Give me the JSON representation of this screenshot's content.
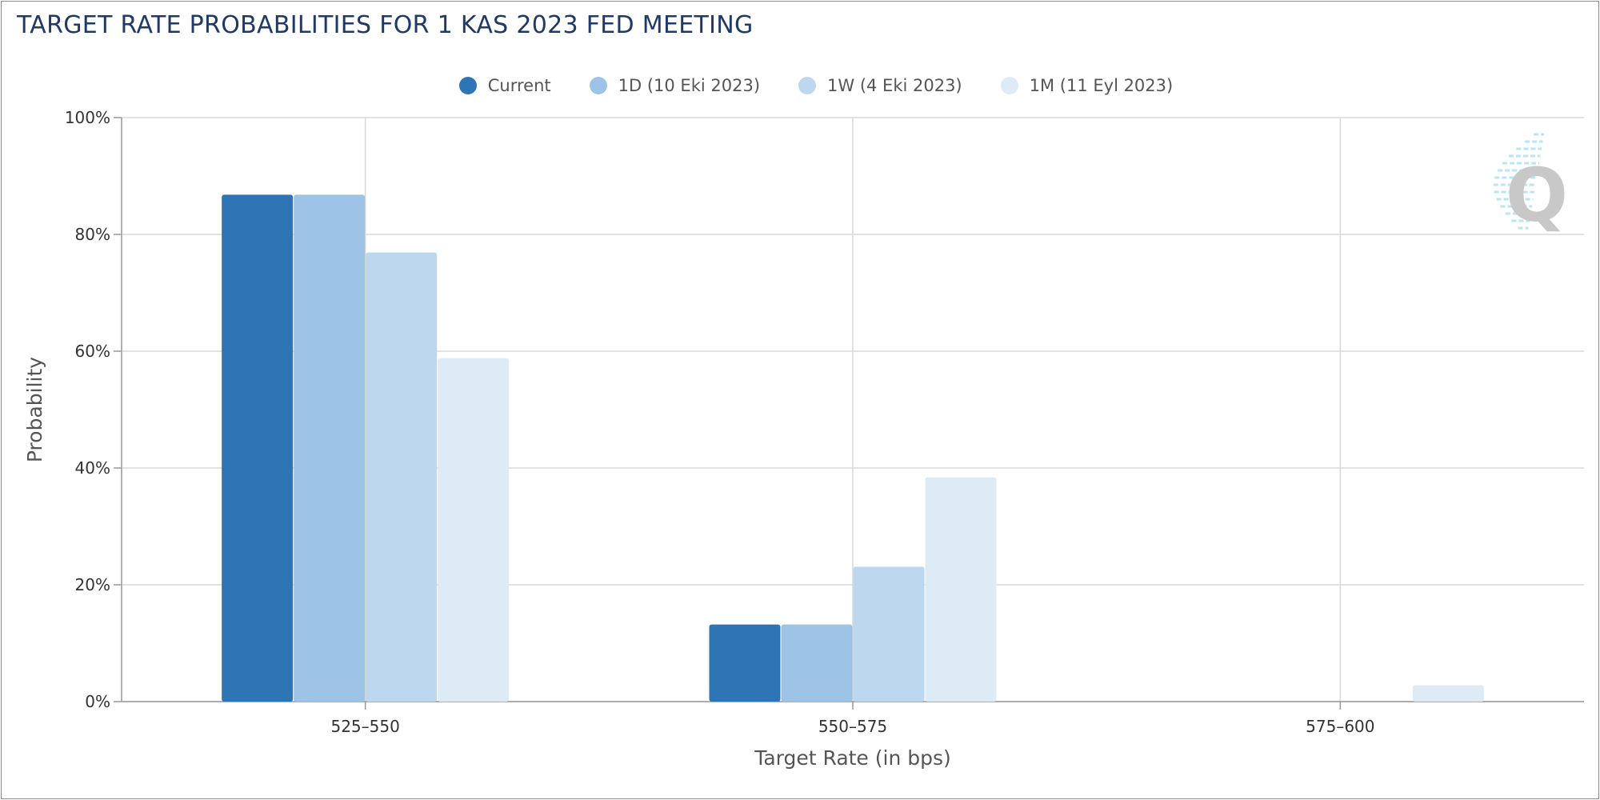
{
  "title": "TARGET RATE PROBABILITIES FOR 1 KAS 2023 FED MEETING",
  "chart_data": {
    "type": "bar",
    "title": "TARGET RATE PROBABILITIES FOR 1 KAS 2023 FED MEETING",
    "xlabel": "Target Rate (in bps)",
    "ylabel": "Probability",
    "categories": [
      "525-550",
      "550-575",
      "575-600"
    ],
    "ylim": [
      0,
      100
    ],
    "yticks": [
      "0%",
      "20%",
      "40%",
      "60%",
      "80%",
      "100%"
    ],
    "grid": true,
    "legend_position": "top-center",
    "series": [
      {
        "name": "Current",
        "color": "#2e75b6",
        "values": [
          86.8,
          13.2,
          0
        ]
      },
      {
        "name": "1D (10 Eki 2023)",
        "color": "#9dc3e6",
        "values": [
          86.8,
          13.2,
          0
        ]
      },
      {
        "name": "1W (4 Eki 2023)",
        "color": "#bdd7ee",
        "values": [
          76.9,
          23.1,
          0
        ]
      },
      {
        "name": "1M (11 Eyl 2023)",
        "color": "#ddebf7",
        "values": [
          58.8,
          38.4,
          2.8
        ]
      }
    ]
  },
  "watermark": {
    "icon": "q-logo-icon",
    "letter": "Q"
  }
}
